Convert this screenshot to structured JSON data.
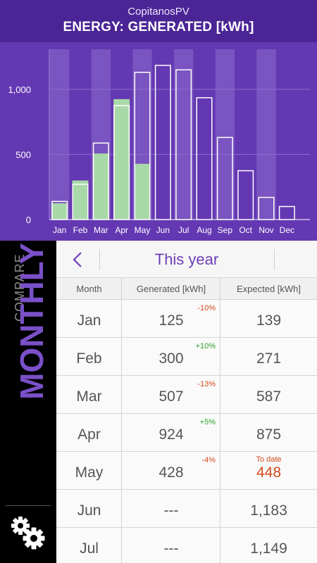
{
  "header": {
    "app_name": "CopitanosPV",
    "title": "ENERGY: GENERATED [kWh]"
  },
  "chart_data": {
    "type": "bar",
    "categories": [
      "Jan",
      "Feb",
      "Mar",
      "Apr",
      "May",
      "Jun",
      "Jul",
      "Aug",
      "Sep",
      "Oct",
      "Nov",
      "Dec"
    ],
    "series": [
      {
        "values": [
          125,
          300,
          507,
          924,
          428,
          null,
          null,
          null,
          null,
          null,
          null,
          null
        ]
      },
      {
        "values": [
          139,
          271,
          587,
          875,
          1130,
          1183,
          1149,
          935,
          630,
          375,
          170,
          100
        ]
      }
    ],
    "y_ticks": [
      "0",
      "500",
      "1,000"
    ],
    "ylim": [
      0,
      1350
    ],
    "grid": true,
    "colors": {
      "generated": "#a9d9a9",
      "expected": "#ffffff",
      "background": "#6438b2",
      "band": "#7a54c0"
    }
  },
  "sidebar": {
    "compare_label": "COMPARE",
    "mode_label": "MONTHLY",
    "settings_icon": "gears-icon"
  },
  "nav": {
    "back_icon": "chevron-left-icon",
    "period": "This year"
  },
  "table": {
    "headers": {
      "month": "Month",
      "generated": "Generated [kWh]",
      "expected": "Expected [kWh]"
    },
    "rows": [
      {
        "month": "Jan",
        "generated": "125",
        "delta": "-10%",
        "delta_sign": "neg",
        "expected": "139",
        "to_date": ""
      },
      {
        "month": "Feb",
        "generated": "300",
        "delta": "+10%",
        "delta_sign": "pos",
        "expected": "271",
        "to_date": ""
      },
      {
        "month": "Mar",
        "generated": "507",
        "delta": "-13%",
        "delta_sign": "neg",
        "expected": "587",
        "to_date": ""
      },
      {
        "month": "Apr",
        "generated": "924",
        "delta": "+5%",
        "delta_sign": "pos",
        "expected": "875",
        "to_date": ""
      },
      {
        "month": "May",
        "generated": "428",
        "delta": "-4%",
        "delta_sign": "neg",
        "expected": "448",
        "to_date": "To date"
      },
      {
        "month": "Jun",
        "generated": "---",
        "delta": "",
        "delta_sign": "",
        "expected": "1,183",
        "to_date": ""
      },
      {
        "month": "Jul",
        "generated": "---",
        "delta": "",
        "delta_sign": "",
        "expected": "1,149",
        "to_date": ""
      }
    ]
  }
}
